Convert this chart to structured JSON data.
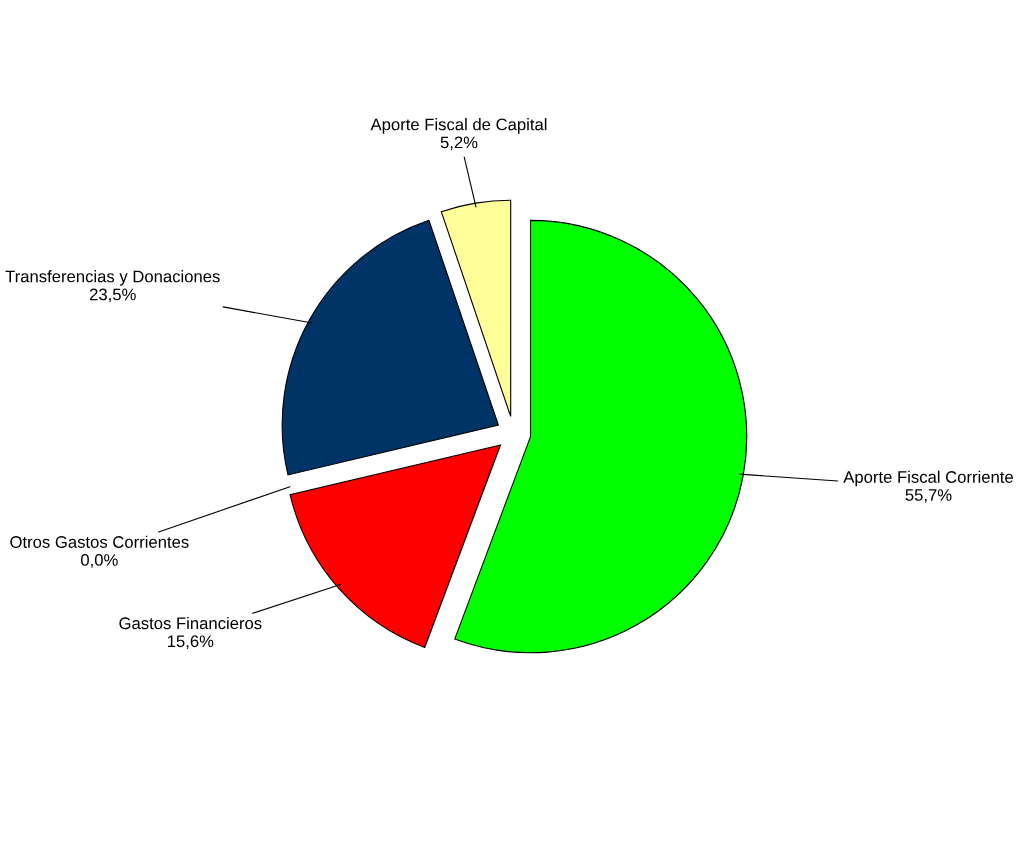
{
  "chart_data": {
    "type": "pie",
    "categories": [
      "Aporte Fiscal Corriente",
      "Gastos Financieros",
      "Otros Gastos Corrientes",
      "Transferencias y Donaciones",
      "Aporte Fiscal de Capital"
    ],
    "values": [
      55.7,
      15.6,
      0.0,
      23.5,
      5.2
    ],
    "value_labels": [
      "55,7%",
      "15,6%",
      "0,0%",
      "23,5%",
      "5,2%"
    ],
    "colors": [
      "#00ff00",
      "#ff0000",
      "#800080",
      "#003366",
      "#ffff99"
    ]
  }
}
